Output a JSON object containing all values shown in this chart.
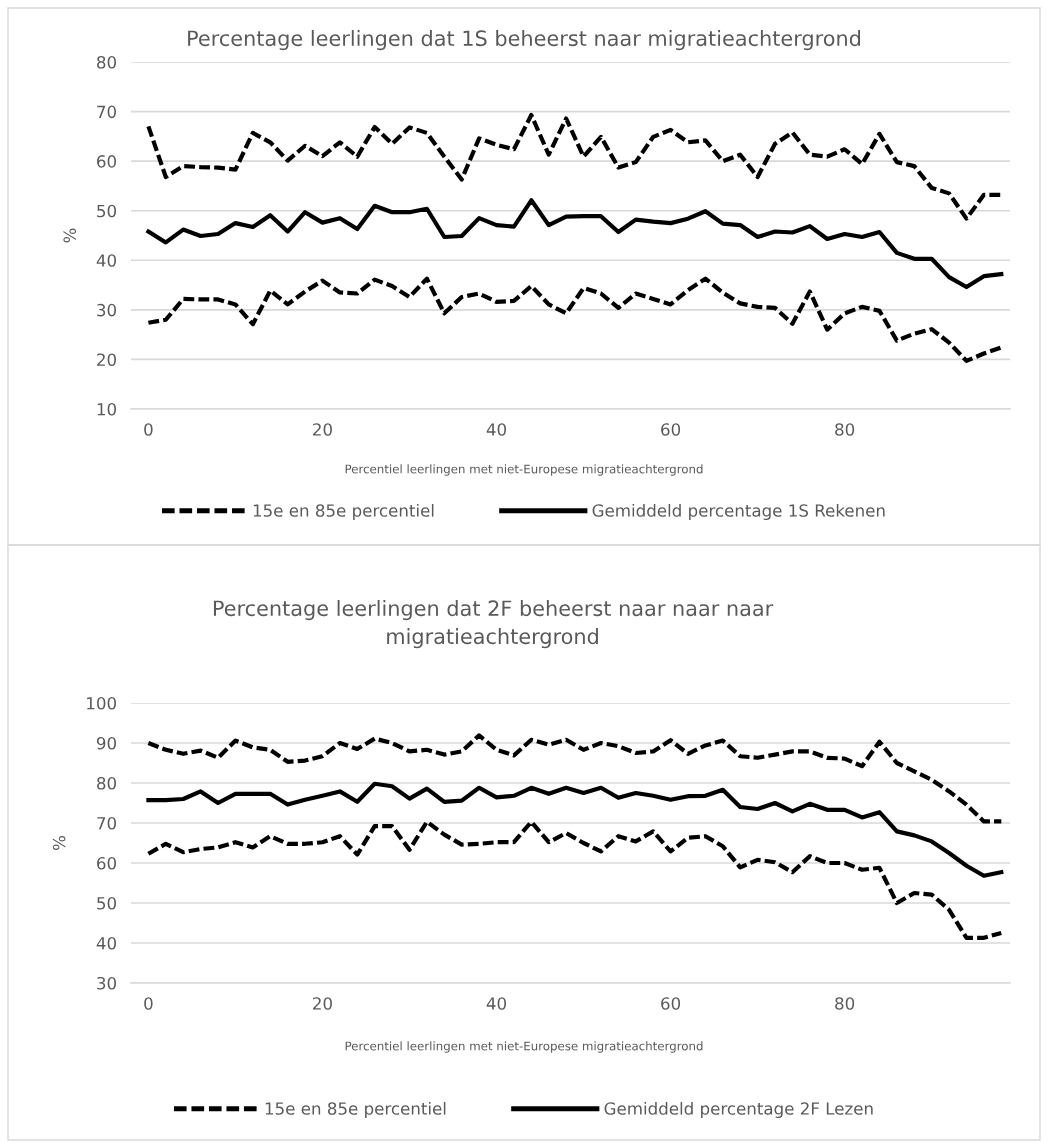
{
  "chart_data": [
    {
      "type": "line",
      "title": "Percentage leerlingen dat 1S beheerst naar migratieachtergrond",
      "xlabel": "Percentiel leerlingen met niet-Europese migratieachtergrond",
      "ylabel": "%",
      "x": [
        0,
        2,
        4,
        6,
        8,
        10,
        12,
        14,
        16,
        18,
        20,
        22,
        24,
        26,
        28,
        30,
        32,
        34,
        36,
        38,
        40,
        42,
        44,
        46,
        48,
        50,
        52,
        54,
        56,
        58,
        60,
        62,
        64,
        66,
        68,
        70,
        72,
        74,
        76,
        78,
        80,
        82,
        84,
        86,
        88,
        90,
        92,
        94,
        96,
        98
      ],
      "xlim": [
        -2,
        99
      ],
      "xticks": [
        0,
        20,
        40,
        60,
        80
      ],
      "ylim": [
        10,
        80
      ],
      "yticks": [
        10,
        20,
        30,
        40,
        50,
        60,
        70,
        80
      ],
      "grid": "y",
      "legend": "bottom",
      "marker": "none",
      "series": [
        {
          "name": "15e en 85e percentiel",
          "color": "#000000",
          "line_style": "dashed",
          "values": [
            67,
            56.8,
            59,
            58.8,
            58.7,
            58.3,
            65.7,
            63.8,
            60.1,
            63.1,
            61,
            63.8,
            60.9,
            66.9,
            63.5,
            66.8,
            65.7,
            60.9,
            56.3,
            64.6,
            63.3,
            62.4,
            69.3,
            61.3,
            68.6,
            60.9,
            64.9,
            58.7,
            59.8,
            64.9,
            66.3,
            63.8,
            64.2,
            60,
            61.3,
            56.8,
            63.5,
            65.8,
            61.3,
            60.9,
            62.4,
            59.4,
            65.5,
            59.8,
            59,
            54.6,
            53.5,
            48.4,
            53.2,
            53.2
          ]
        },
        {
          "name": "Gemiddeld percentage 1S Rekenen",
          "color": "#000000",
          "line_style": "solid",
          "values": [
            45.8,
            43.6,
            46.2,
            44.9,
            45.3,
            47.5,
            46.7,
            49.1,
            45.8,
            49.7,
            47.6,
            48.5,
            46.3,
            51,
            49.7,
            49.7,
            50.4,
            44.7,
            44.9,
            48.5,
            47.1,
            46.8,
            52.1,
            47.1,
            48.8,
            48.9,
            48.9,
            45.7,
            48.2,
            47.8,
            47.5,
            48.4,
            49.9,
            47.4,
            47.1,
            44.7,
            45.8,
            45.6,
            46.9,
            44.3,
            45.3,
            44.7,
            45.7,
            41.5,
            40.3,
            40.3,
            36.6,
            34.6,
            36.8,
            37.2
          ]
        },
        {
          "color": "#000000",
          "line_style": "dashed",
          "values": [
            27.4,
            28,
            32.2,
            32.1,
            32.1,
            31.1,
            27.1,
            33.9,
            31.1,
            33.7,
            35.9,
            33.5,
            33.3,
            36.1,
            34.8,
            32.6,
            36.3,
            29.3,
            32.6,
            33.3,
            31.6,
            31.8,
            34.8,
            31.1,
            29.3,
            34.4,
            33.3,
            30.4,
            33.3,
            32.2,
            31.1,
            34,
            36.3,
            33.5,
            31.3,
            30.6,
            30.4,
            27.2,
            33.7,
            26,
            29.3,
            30.6,
            29.8,
            23.8,
            25.2,
            26.1,
            23.4,
            19.7,
            21.2,
            22.4
          ]
        }
      ]
    },
    {
      "type": "line",
      "title": "Percentage leerlingen dat 2F beheerst naar naar naar\nmigratieachtergrond",
      "xlabel": "Percentiel leerlingen met niet-Europese migratieachtergrond",
      "ylabel": "%",
      "x": [
        0,
        2,
        4,
        6,
        8,
        10,
        12,
        14,
        16,
        18,
        20,
        22,
        24,
        26,
        28,
        30,
        32,
        34,
        36,
        38,
        40,
        42,
        44,
        46,
        48,
        50,
        52,
        54,
        56,
        58,
        60,
        62,
        64,
        66,
        68,
        70,
        72,
        74,
        76,
        78,
        80,
        82,
        84,
        86,
        88,
        90,
        92,
        94,
        96,
        98
      ],
      "xlim": [
        -2,
        99
      ],
      "xticks": [
        0,
        20,
        40,
        60,
        80
      ],
      "ylim": [
        30,
        100
      ],
      "yticks": [
        30,
        40,
        50,
        60,
        70,
        80,
        90,
        100
      ],
      "grid": "y",
      "legend": "bottom",
      "marker": "none",
      "series": [
        {
          "name": "15e en 85e percentiel",
          "color": "#000000",
          "line_style": "dashed",
          "values": [
            90,
            88.3,
            87.3,
            88.1,
            86.3,
            90.6,
            88.9,
            88.3,
            85.3,
            85.6,
            86.7,
            90,
            88.5,
            91.1,
            90,
            87.9,
            88.3,
            87.1,
            87.9,
            91.9,
            88.3,
            86.9,
            90.8,
            89.6,
            90.8,
            88.3,
            90,
            89.2,
            87.5,
            87.9,
            90.7,
            87.3,
            89.4,
            90.6,
            86.7,
            86.3,
            87.1,
            87.9,
            87.9,
            86.3,
            86.1,
            84.2,
            90.3,
            85,
            82.9,
            80.8,
            77.9,
            74.6,
            70.4,
            70.4
          ]
        },
        {
          "name": "Gemiddeld percentage 2F Lezen",
          "color": "#000000",
          "line_style": "solid",
          "values": [
            75.7,
            75.7,
            76,
            77.9,
            75,
            77.3,
            77.3,
            77.3,
            74.6,
            75.8,
            76.8,
            77.9,
            75.3,
            79.8,
            79.2,
            76.1,
            78.6,
            75.3,
            75.6,
            78.8,
            76.4,
            76.8,
            78.8,
            77.3,
            78.8,
            77.5,
            78.8,
            76.3,
            77.5,
            76.8,
            75.8,
            76.7,
            76.8,
            78.3,
            74,
            73.5,
            75,
            72.9,
            74.8,
            73.3,
            73.3,
            71.4,
            72.7,
            67.9,
            66.9,
            65.4,
            62.5,
            59.3,
            56.8,
            57.7
          ]
        },
        {
          "color": "#000000",
          "line_style": "dashed",
          "values": [
            62.3,
            64.8,
            62.7,
            63.5,
            63.9,
            65.2,
            63.9,
            66.7,
            64.8,
            64.8,
            65.2,
            66.7,
            62.1,
            69.2,
            69.2,
            63.3,
            70.3,
            67.1,
            64.6,
            64.8,
            65.2,
            65.2,
            70.3,
            65.2,
            67.5,
            65,
            62.9,
            66.7,
            65.4,
            67.9,
            62.9,
            66.3,
            66.7,
            64.2,
            58.9,
            60.8,
            60.2,
            57.7,
            61.7,
            60,
            60,
            58.3,
            58.8,
            50,
            52.5,
            52.1,
            48.3,
            41.3,
            41.3,
            42.5
          ]
        }
      ]
    }
  ]
}
